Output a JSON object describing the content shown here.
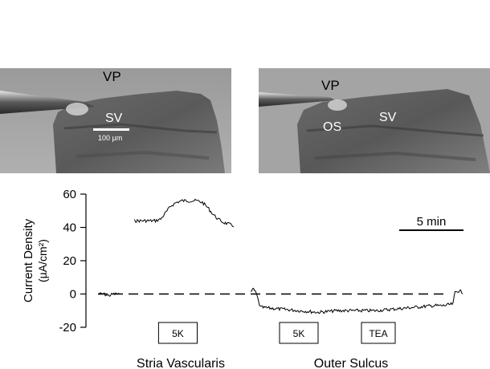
{
  "micrographs": {
    "left": {
      "labels": [
        "VP",
        "SV"
      ],
      "scale_bar": "100 µm"
    },
    "right": {
      "labels": [
        "VP",
        "OS",
        "SV"
      ]
    }
  },
  "colors": {
    "trace": "#000000",
    "background": "#ffffff",
    "micrograph": "#7a7a7a"
  },
  "chart_data": {
    "type": "line",
    "ylabel": "Current Density",
    "ylabel_units": "(µA/cm²)",
    "yticks": [
      60,
      40,
      20,
      0,
      -20
    ],
    "ylim": [
      -20,
      60
    ],
    "x_units": "min",
    "time_scale_bar": "5 min",
    "zero_line": "dashed",
    "panels": [
      {
        "name": "Stria Vascularis",
        "series": [
          {
            "x": [
              0,
              0.5,
              1,
              1.5,
              2
            ],
            "y": [
              0,
              0,
              -1,
              0,
              0
            ]
          },
          {
            "x": [
              3.5,
              4.5,
              5.5,
              6,
              6.5,
              7,
              7.5,
              8,
              8.5,
              9,
              9.5,
              10,
              10.5,
              11,
              11.5,
              12,
              12.5,
              13
            ],
            "y": [
              44,
              44,
              44,
              45,
              49,
              53,
              55,
              56,
              56,
              56,
              56,
              55,
              52,
              48,
              45,
              43,
              42,
              41
            ]
          }
        ],
        "treatments": [
          {
            "label": "5K",
            "start": 5.8,
            "end": 9.5
          }
        ]
      },
      {
        "name": "Outer Sulcus",
        "series": [
          {
            "x": [
              0,
              0.3,
              0.6,
              1,
              3,
              5,
              7,
              9,
              11,
              13,
              15,
              17,
              19,
              20,
              21,
              21.2,
              21.5,
              22
            ],
            "y": [
              1,
              3,
              0,
              -8,
              -9,
              -10,
              -11,
              -10,
              -10,
              -10,
              -9,
              -8,
              -7,
              -7,
              -6,
              1,
              2,
              1
            ]
          }
        ],
        "treatments": [
          {
            "label": "5K",
            "start": 3,
            "end": 7
          },
          {
            "label": "TEA",
            "start": 11.5,
            "end": 15
          }
        ]
      }
    ]
  }
}
